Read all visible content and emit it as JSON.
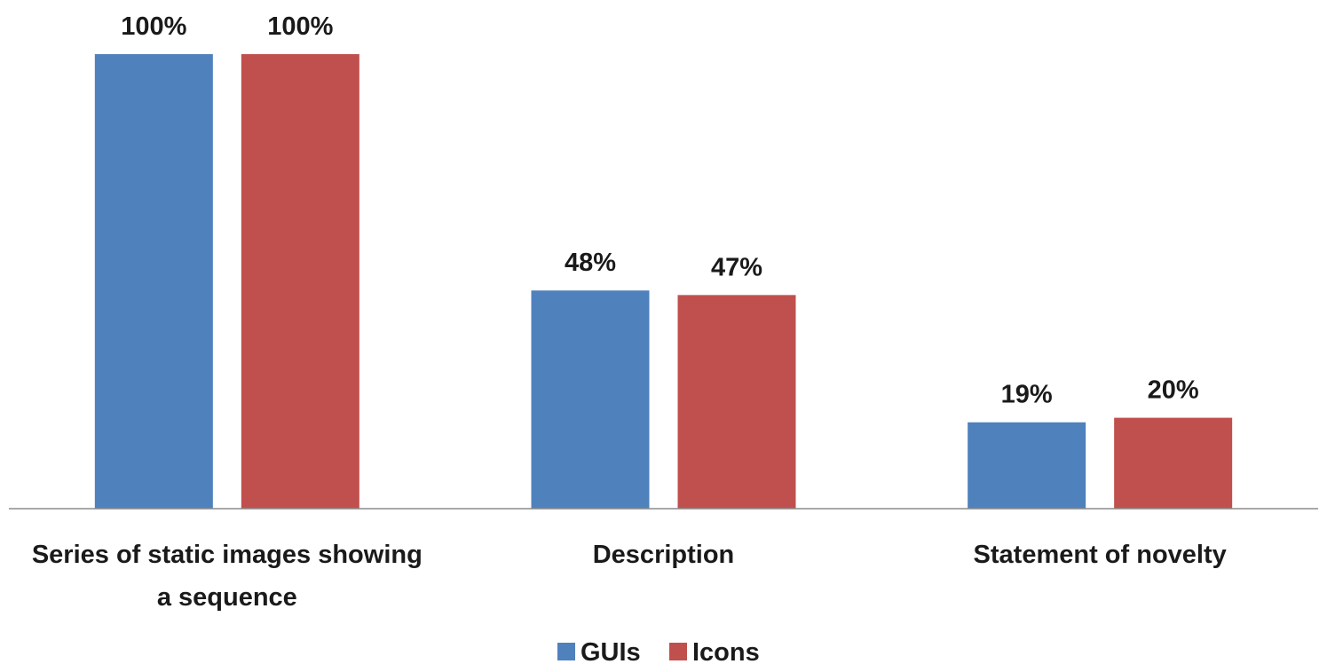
{
  "chart_data": {
    "type": "bar",
    "categories": [
      [
        "Series of static images showing",
        "a sequence"
      ],
      [
        "Description"
      ],
      [
        "Statement of novelty"
      ]
    ],
    "series": [
      {
        "name": "GUIs",
        "values": [
          100,
          48,
          19
        ],
        "labels": [
          "100%",
          "48%",
          "19%"
        ],
        "color": "#4f81bd"
      },
      {
        "name": "Icons",
        "values": [
          100,
          47,
          20
        ],
        "labels": [
          "100%",
          "47%",
          "20%"
        ],
        "color": "#c0504d"
      }
    ],
    "ylim": [
      0,
      100
    ],
    "grid": false,
    "legend_position": "bottom"
  }
}
